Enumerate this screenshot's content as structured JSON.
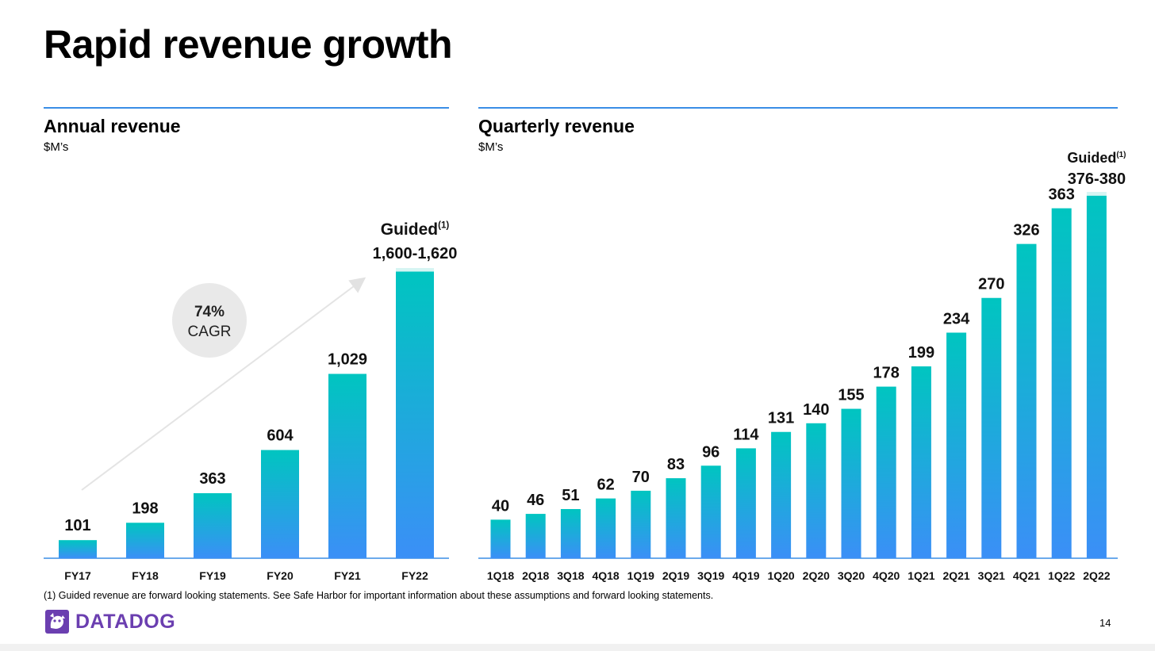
{
  "title": "Rapid revenue growth",
  "annual": {
    "heading": "Annual revenue",
    "unit": "$M’s",
    "cagr_value": "74%",
    "cagr_label": "CAGR"
  },
  "quarterly": {
    "heading": "Quarterly revenue",
    "unit": "$M’s"
  },
  "footnote": "(1) Guided revenue are forward looking statements.  See Safe Harbor for important information about these assumptions and forward looking statements.",
  "logo_text": "DATADOG",
  "page_number": "14",
  "colors": {
    "bar_top": "#00c5c0",
    "bar_bottom": "#3b8ff7",
    "rule": "#3a8ee6",
    "brand": "#6b3fb0"
  },
  "chart_data": [
    {
      "type": "bar",
      "categories": [
        "FY17",
        "FY18",
        "FY19",
        "FY20",
        "FY21",
        "FY22"
      ],
      "values": [
        101,
        198,
        363,
        604,
        1029,
        1610
      ],
      "range_high": [
        null,
        null,
        null,
        null,
        null,
        1620
      ],
      "range_low": [
        null,
        null,
        null,
        null,
        null,
        1600
      ],
      "labels": [
        "101",
        "198",
        "363",
        "604",
        "1,029",
        "1,600-1,620"
      ],
      "guided_category": "FY22",
      "guided_label": "Guided",
      "guided_footnote_mark": "(1)",
      "ylim": [
        0,
        1620
      ]
    },
    {
      "type": "bar",
      "categories": [
        "1Q18",
        "2Q18",
        "3Q18",
        "4Q18",
        "1Q19",
        "2Q19",
        "3Q19",
        "4Q19",
        "1Q20",
        "2Q20",
        "3Q20",
        "4Q20",
        "1Q21",
        "2Q21",
        "3Q21",
        "4Q21",
        "1Q22",
        "2Q22"
      ],
      "values": [
        40,
        46,
        51,
        62,
        70,
        83,
        96,
        114,
        131,
        140,
        155,
        178,
        199,
        234,
        270,
        326,
        363,
        378
      ],
      "range_high": [
        null,
        null,
        null,
        null,
        null,
        null,
        null,
        null,
        null,
        null,
        null,
        null,
        null,
        null,
        null,
        null,
        null,
        380
      ],
      "range_low": [
        null,
        null,
        null,
        null,
        null,
        null,
        null,
        null,
        null,
        null,
        null,
        null,
        null,
        null,
        null,
        null,
        null,
        376
      ],
      "labels": [
        "40",
        "46",
        "51",
        "62",
        "70",
        "83",
        "96",
        "114",
        "131",
        "140",
        "155",
        "178",
        "199",
        "234",
        "270",
        "326",
        "363",
        "376-380"
      ],
      "guided_category": "2Q22",
      "guided_label": "Guided",
      "guided_footnote_mark": "(1)",
      "ylim": [
        0,
        380
      ]
    }
  ]
}
